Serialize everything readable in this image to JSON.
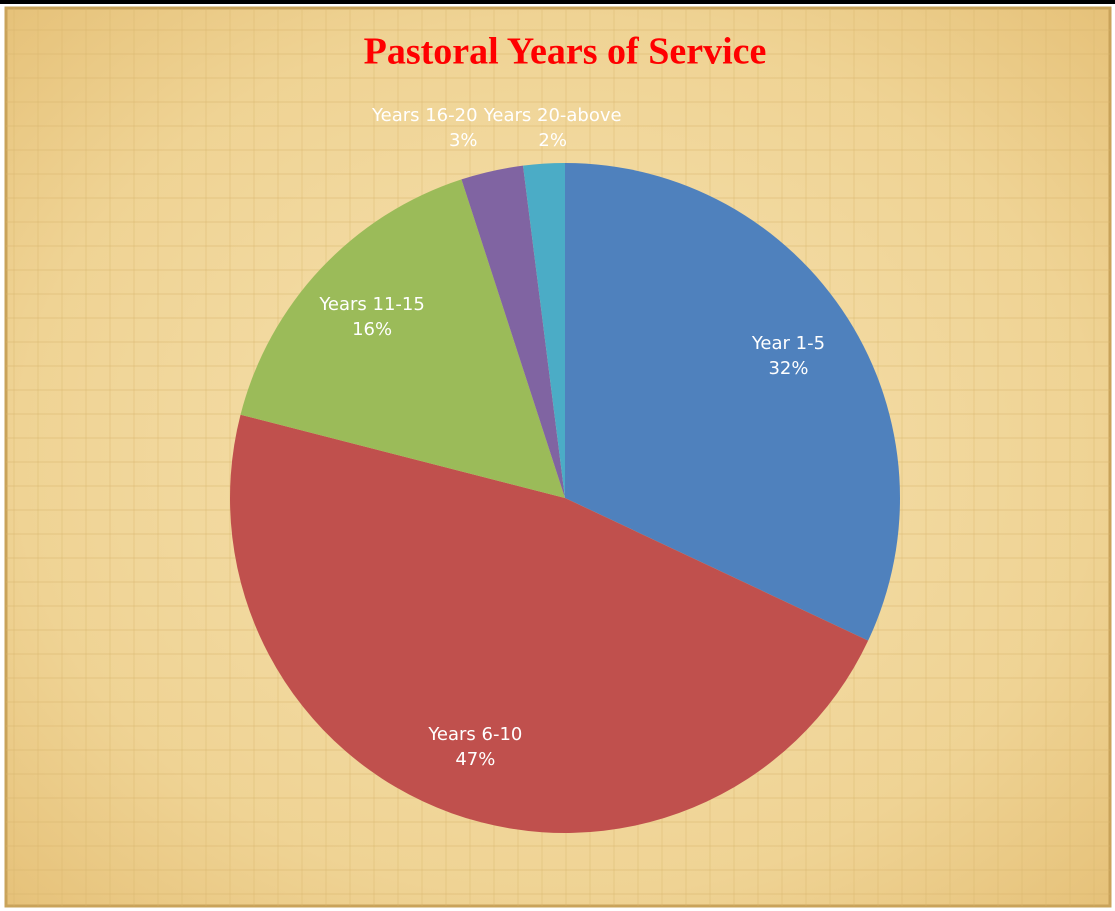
{
  "chart_data": {
    "type": "pie",
    "title": "Pastoral Years of Service",
    "categories": [
      "Year 1-5",
      "Years 6-10",
      "Years 11-15",
      "Years 16-20",
      "Years 20-above"
    ],
    "values": [
      32,
      47,
      16,
      3,
      2
    ],
    "value_labels": [
      "32%",
      "47%",
      "16%",
      "3%",
      "2%"
    ],
    "colors": [
      "#4f81bd",
      "#c0504d",
      "#9bbb59",
      "#8064a2",
      "#4bacc6"
    ]
  }
}
